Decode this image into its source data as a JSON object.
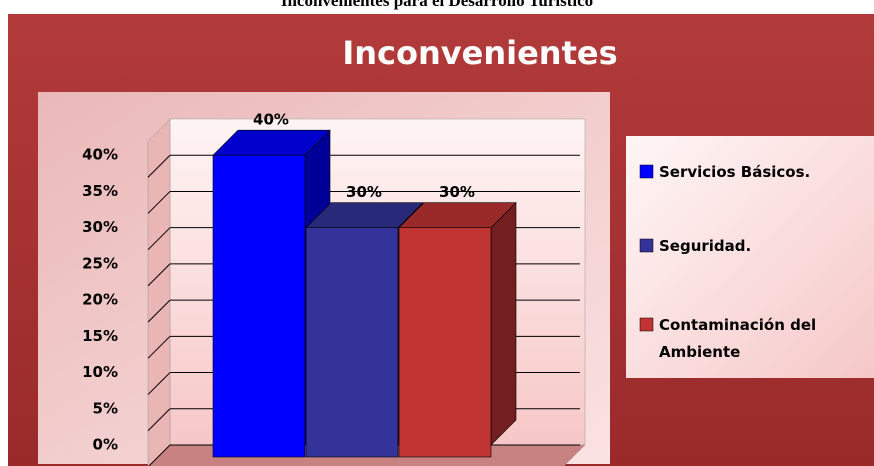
{
  "heading": "Inconvenientes para el Desarrollo Turístico",
  "chart_data": {
    "type": "bar3d",
    "title": "Inconvenientes",
    "categories": [
      "Servicios Básicos.",
      "Seguridad.",
      "Contaminación del Ambiente"
    ],
    "values": [
      40,
      30,
      30
    ],
    "value_labels": [
      "40%",
      "30%",
      "30%"
    ],
    "colors": [
      "#0000ff",
      "#333399",
      "#c03434"
    ],
    "ylim": [
      0,
      45
    ],
    "yticks": [
      {
        "value": 0,
        "label": "0%"
      },
      {
        "value": 5,
        "label": "5%"
      },
      {
        "value": 10,
        "label": "10%"
      },
      {
        "value": 15,
        "label": "15%"
      },
      {
        "value": 20,
        "label": "20%"
      },
      {
        "value": 25,
        "label": "25%"
      },
      {
        "value": 30,
        "label": "30%"
      },
      {
        "value": 35,
        "label": "35%"
      },
      {
        "value": 40,
        "label": "40%"
      }
    ],
    "grid": true,
    "legend": "right"
  }
}
